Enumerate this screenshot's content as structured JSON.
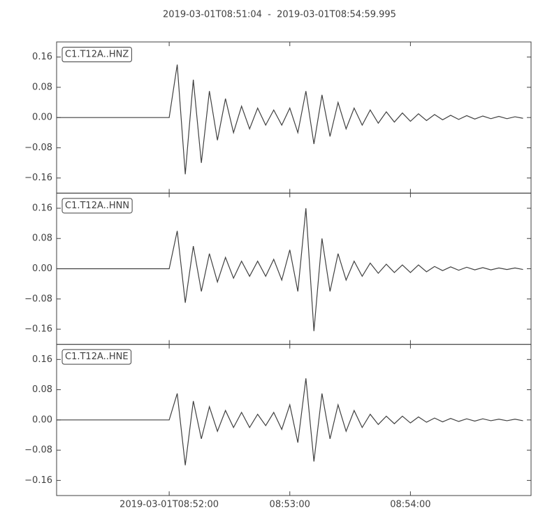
{
  "chart_data": {
    "type": "line",
    "subplots": true,
    "title": "2019-03-01T08:51:04  -  2019-03-01T08:54:59.995",
    "x": [
      "2019-03-01T08:51:04",
      "2019-03-01T08:51:08",
      "2019-03-01T08:51:12",
      "2019-03-01T08:51:16",
      "2019-03-01T08:51:20",
      "2019-03-01T08:51:24",
      "2019-03-01T08:51:28",
      "2019-03-01T08:51:32",
      "2019-03-01T08:51:36",
      "2019-03-01T08:51:40",
      "2019-03-01T08:51:44",
      "2019-03-01T08:51:48",
      "2019-03-01T08:51:52",
      "2019-03-01T08:51:56",
      "2019-03-01T08:52:00",
      "2019-03-01T08:52:04",
      "2019-03-01T08:52:08",
      "2019-03-01T08:52:12",
      "2019-03-01T08:52:16",
      "2019-03-01T08:52:20",
      "2019-03-01T08:52:24",
      "2019-03-01T08:52:28",
      "2019-03-01T08:52:32",
      "2019-03-01T08:52:36",
      "2019-03-01T08:52:40",
      "2019-03-01T08:52:44",
      "2019-03-01T08:52:48",
      "2019-03-01T08:52:52",
      "2019-03-01T08:52:56",
      "2019-03-01T08:53:00",
      "2019-03-01T08:53:04",
      "2019-03-01T08:53:08",
      "2019-03-01T08:53:12",
      "2019-03-01T08:53:16",
      "2019-03-01T08:53:20",
      "2019-03-01T08:53:24",
      "2019-03-01T08:53:28",
      "2019-03-01T08:53:32",
      "2019-03-01T08:53:36",
      "2019-03-01T08:53:40",
      "2019-03-01T08:53:44",
      "2019-03-01T08:53:48",
      "2019-03-01T08:53:52",
      "2019-03-01T08:53:56",
      "2019-03-01T08:54:00",
      "2019-03-01T08:54:04",
      "2019-03-01T08:54:08",
      "2019-03-01T08:54:12",
      "2019-03-01T08:54:16",
      "2019-03-01T08:54:20",
      "2019-03-01T08:54:24",
      "2019-03-01T08:54:28",
      "2019-03-01T08:54:32",
      "2019-03-01T08:54:36",
      "2019-03-01T08:54:40",
      "2019-03-01T08:54:44",
      "2019-03-01T08:54:48",
      "2019-03-01T08:54:52",
      "2019-03-01T08:54:56"
    ],
    "series": [
      {
        "name": "C1.T12A..HNZ",
        "color": "#404040",
        "values": [
          0,
          0,
          0,
          0,
          0,
          0,
          0,
          0,
          0,
          0,
          0,
          0,
          0,
          0,
          0,
          0.14,
          -0.15,
          0.1,
          -0.12,
          0.07,
          -0.06,
          0.05,
          -0.04,
          0.03,
          -0.03,
          0.025,
          -0.02,
          0.02,
          -0.02,
          0.025,
          -0.04,
          0.07,
          -0.07,
          0.06,
          -0.05,
          0.04,
          -0.03,
          0.025,
          -0.02,
          0.02,
          -0.015,
          0.015,
          -0.012,
          0.012,
          -0.01,
          0.01,
          -0.008,
          0.008,
          -0.006,
          0.006,
          -0.005,
          0.005,
          -0.004,
          0.004,
          -0.003,
          0.003,
          -0.003,
          0.002,
          -0.002
        ]
      },
      {
        "name": "C1.T12A..HNN",
        "color": "#404040",
        "values": [
          0,
          0,
          0,
          0,
          0,
          0,
          0,
          0,
          0,
          0,
          0,
          0,
          0,
          0,
          0,
          0.1,
          -0.09,
          0.06,
          -0.06,
          0.04,
          -0.035,
          0.03,
          -0.025,
          0.02,
          -0.02,
          0.02,
          -0.02,
          0.025,
          -0.03,
          0.05,
          -0.06,
          0.16,
          -0.165,
          0.08,
          -0.06,
          0.04,
          -0.03,
          0.02,
          -0.02,
          0.015,
          -0.012,
          0.012,
          -0.01,
          0.01,
          -0.01,
          0.01,
          -0.008,
          0.006,
          -0.005,
          0.005,
          -0.004,
          0.004,
          -0.003,
          0.003,
          -0.003,
          0.002,
          -0.002,
          0.002,
          -0.002
        ]
      },
      {
        "name": "C1.T12A..HNE",
        "color": "#404040",
        "values": [
          0,
          0,
          0,
          0,
          0,
          0,
          0,
          0,
          0,
          0,
          0,
          0,
          0,
          0,
          0,
          0.07,
          -0.12,
          0.05,
          -0.05,
          0.035,
          -0.03,
          0.025,
          -0.02,
          0.02,
          -0.02,
          0.015,
          -0.015,
          0.02,
          -0.025,
          0.04,
          -0.06,
          0.11,
          -0.11,
          0.07,
          -0.05,
          0.04,
          -0.03,
          0.025,
          -0.02,
          0.015,
          -0.012,
          0.01,
          -0.01,
          0.01,
          -0.008,
          0.008,
          -0.006,
          0.005,
          -0.005,
          0.004,
          -0.004,
          0.003,
          -0.003,
          0.003,
          -0.002,
          0.002,
          -0.002,
          0.002,
          -0.002
        ]
      }
    ],
    "xlim": [
      "2019-03-01T08:51:04",
      "2019-03-01T08:54:59.995"
    ],
    "xticks": [
      "2019-03-01T08:52:00",
      {
        "value": "2019-03-01T08:53:00",
        "label": "08:53:00"
      },
      {
        "value": "2019-03-01T08:54:00",
        "label": "08:54:00"
      }
    ],
    "ylim": [
      -0.2,
      0.2
    ],
    "yticks": [
      {
        "value": -0.16,
        "label": "−0.16"
      },
      {
        "value": -0.08,
        "label": "−0.08"
      },
      {
        "value": 0,
        "label": "0.00"
      },
      {
        "value": 0.08,
        "label": "0.08"
      },
      {
        "value": 0.16,
        "label": "0.16"
      }
    ]
  }
}
